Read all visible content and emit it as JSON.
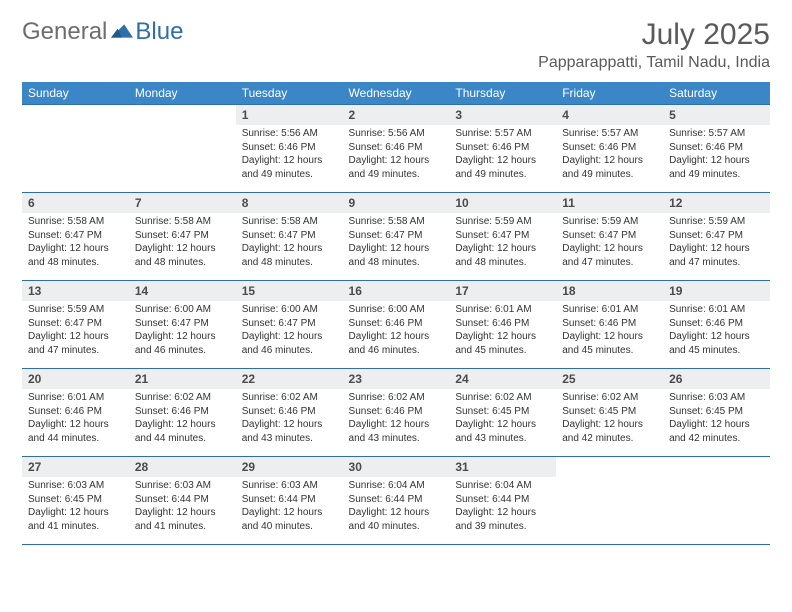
{
  "brand": {
    "general": "General",
    "blue": "Blue"
  },
  "title": {
    "month": "July 2025",
    "location": "Papparappatti, Tamil Nadu, India"
  },
  "colors": {
    "header_bg": "#3b86c6",
    "header_text": "#ffffff",
    "rule": "#2f6fa8",
    "daynum_bg": "#eceeef",
    "text": "#333333",
    "muted": "#5a5a5a",
    "brand_gray": "#6d6d6d",
    "brand_blue": "#2f6fa8"
  },
  "weekdays": [
    "Sunday",
    "Monday",
    "Tuesday",
    "Wednesday",
    "Thursday",
    "Friday",
    "Saturday"
  ],
  "weeks": [
    [
      {
        "empty": true
      },
      {
        "empty": true
      },
      {
        "n": "1",
        "sr": "Sunrise: 5:56 AM",
        "ss": "Sunset: 6:46 PM",
        "d1": "Daylight: 12 hours",
        "d2": "and 49 minutes."
      },
      {
        "n": "2",
        "sr": "Sunrise: 5:56 AM",
        "ss": "Sunset: 6:46 PM",
        "d1": "Daylight: 12 hours",
        "d2": "and 49 minutes."
      },
      {
        "n": "3",
        "sr": "Sunrise: 5:57 AM",
        "ss": "Sunset: 6:46 PM",
        "d1": "Daylight: 12 hours",
        "d2": "and 49 minutes."
      },
      {
        "n": "4",
        "sr": "Sunrise: 5:57 AM",
        "ss": "Sunset: 6:46 PM",
        "d1": "Daylight: 12 hours",
        "d2": "and 49 minutes."
      },
      {
        "n": "5",
        "sr": "Sunrise: 5:57 AM",
        "ss": "Sunset: 6:46 PM",
        "d1": "Daylight: 12 hours",
        "d2": "and 49 minutes."
      }
    ],
    [
      {
        "n": "6",
        "sr": "Sunrise: 5:58 AM",
        "ss": "Sunset: 6:47 PM",
        "d1": "Daylight: 12 hours",
        "d2": "and 48 minutes."
      },
      {
        "n": "7",
        "sr": "Sunrise: 5:58 AM",
        "ss": "Sunset: 6:47 PM",
        "d1": "Daylight: 12 hours",
        "d2": "and 48 minutes."
      },
      {
        "n": "8",
        "sr": "Sunrise: 5:58 AM",
        "ss": "Sunset: 6:47 PM",
        "d1": "Daylight: 12 hours",
        "d2": "and 48 minutes."
      },
      {
        "n": "9",
        "sr": "Sunrise: 5:58 AM",
        "ss": "Sunset: 6:47 PM",
        "d1": "Daylight: 12 hours",
        "d2": "and 48 minutes."
      },
      {
        "n": "10",
        "sr": "Sunrise: 5:59 AM",
        "ss": "Sunset: 6:47 PM",
        "d1": "Daylight: 12 hours",
        "d2": "and 48 minutes."
      },
      {
        "n": "11",
        "sr": "Sunrise: 5:59 AM",
        "ss": "Sunset: 6:47 PM",
        "d1": "Daylight: 12 hours",
        "d2": "and 47 minutes."
      },
      {
        "n": "12",
        "sr": "Sunrise: 5:59 AM",
        "ss": "Sunset: 6:47 PM",
        "d1": "Daylight: 12 hours",
        "d2": "and 47 minutes."
      }
    ],
    [
      {
        "n": "13",
        "sr": "Sunrise: 5:59 AM",
        "ss": "Sunset: 6:47 PM",
        "d1": "Daylight: 12 hours",
        "d2": "and 47 minutes."
      },
      {
        "n": "14",
        "sr": "Sunrise: 6:00 AM",
        "ss": "Sunset: 6:47 PM",
        "d1": "Daylight: 12 hours",
        "d2": "and 46 minutes."
      },
      {
        "n": "15",
        "sr": "Sunrise: 6:00 AM",
        "ss": "Sunset: 6:47 PM",
        "d1": "Daylight: 12 hours",
        "d2": "and 46 minutes."
      },
      {
        "n": "16",
        "sr": "Sunrise: 6:00 AM",
        "ss": "Sunset: 6:46 PM",
        "d1": "Daylight: 12 hours",
        "d2": "and 46 minutes."
      },
      {
        "n": "17",
        "sr": "Sunrise: 6:01 AM",
        "ss": "Sunset: 6:46 PM",
        "d1": "Daylight: 12 hours",
        "d2": "and 45 minutes."
      },
      {
        "n": "18",
        "sr": "Sunrise: 6:01 AM",
        "ss": "Sunset: 6:46 PM",
        "d1": "Daylight: 12 hours",
        "d2": "and 45 minutes."
      },
      {
        "n": "19",
        "sr": "Sunrise: 6:01 AM",
        "ss": "Sunset: 6:46 PM",
        "d1": "Daylight: 12 hours",
        "d2": "and 45 minutes."
      }
    ],
    [
      {
        "n": "20",
        "sr": "Sunrise: 6:01 AM",
        "ss": "Sunset: 6:46 PM",
        "d1": "Daylight: 12 hours",
        "d2": "and 44 minutes."
      },
      {
        "n": "21",
        "sr": "Sunrise: 6:02 AM",
        "ss": "Sunset: 6:46 PM",
        "d1": "Daylight: 12 hours",
        "d2": "and 44 minutes."
      },
      {
        "n": "22",
        "sr": "Sunrise: 6:02 AM",
        "ss": "Sunset: 6:46 PM",
        "d1": "Daylight: 12 hours",
        "d2": "and 43 minutes."
      },
      {
        "n": "23",
        "sr": "Sunrise: 6:02 AM",
        "ss": "Sunset: 6:46 PM",
        "d1": "Daylight: 12 hours",
        "d2": "and 43 minutes."
      },
      {
        "n": "24",
        "sr": "Sunrise: 6:02 AM",
        "ss": "Sunset: 6:45 PM",
        "d1": "Daylight: 12 hours",
        "d2": "and 43 minutes."
      },
      {
        "n": "25",
        "sr": "Sunrise: 6:02 AM",
        "ss": "Sunset: 6:45 PM",
        "d1": "Daylight: 12 hours",
        "d2": "and 42 minutes."
      },
      {
        "n": "26",
        "sr": "Sunrise: 6:03 AM",
        "ss": "Sunset: 6:45 PM",
        "d1": "Daylight: 12 hours",
        "d2": "and 42 minutes."
      }
    ],
    [
      {
        "n": "27",
        "sr": "Sunrise: 6:03 AM",
        "ss": "Sunset: 6:45 PM",
        "d1": "Daylight: 12 hours",
        "d2": "and 41 minutes."
      },
      {
        "n": "28",
        "sr": "Sunrise: 6:03 AM",
        "ss": "Sunset: 6:44 PM",
        "d1": "Daylight: 12 hours",
        "d2": "and 41 minutes."
      },
      {
        "n": "29",
        "sr": "Sunrise: 6:03 AM",
        "ss": "Sunset: 6:44 PM",
        "d1": "Daylight: 12 hours",
        "d2": "and 40 minutes."
      },
      {
        "n": "30",
        "sr": "Sunrise: 6:04 AM",
        "ss": "Sunset: 6:44 PM",
        "d1": "Daylight: 12 hours",
        "d2": "and 40 minutes."
      },
      {
        "n": "31",
        "sr": "Sunrise: 6:04 AM",
        "ss": "Sunset: 6:44 PM",
        "d1": "Daylight: 12 hours",
        "d2": "and 39 minutes."
      },
      {
        "empty": true
      },
      {
        "empty": true
      }
    ]
  ]
}
